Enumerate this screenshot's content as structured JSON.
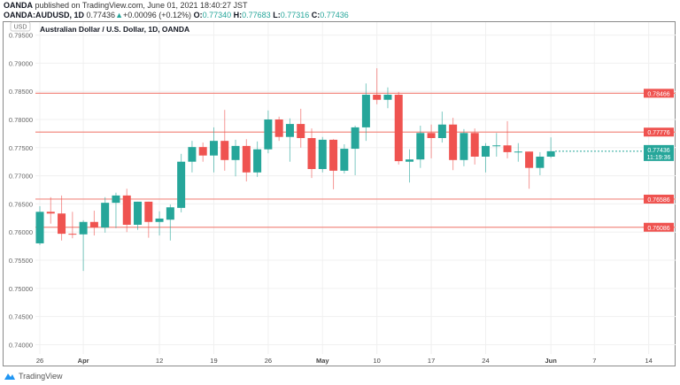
{
  "header": {
    "publisher": "OANDA",
    "published_text": "published on TradingView.com, June 01, 2021 18:40:27 JST",
    "symbol": "OANDA:AUDUSD, 1D",
    "last": "0.77436",
    "change": "+0.00096 (+0.12%)",
    "o_label": "O:",
    "o": "0.77340",
    "h_label": "H:",
    "h": "0.77683",
    "l_label": "L:",
    "l": "0.77316",
    "c_label": "C:",
    "c": "0.77436"
  },
  "footer": {
    "brand": "TradingView"
  },
  "colors": {
    "up": "#26a69a",
    "down": "#ef5350",
    "level": "#f28b82",
    "grid": "#f0f0f0"
  },
  "chart_data": {
    "type": "candlestick",
    "title": "Australian Dollar / U.S. Dollar, 1D, OANDA",
    "currency_label": "USD",
    "ylim": [
      0.7375,
      0.7958
    ],
    "y_ticks": [
      "0.79500",
      "0.79000",
      "0.78500",
      "0.78000",
      "0.77500",
      "0.77000",
      "0.76500",
      "0.76000",
      "0.75500",
      "0.75000",
      "0.74500",
      "0.74000"
    ],
    "x_ticks": [
      {
        "label": "26",
        "index": 0,
        "bold": false
      },
      {
        "label": "Apr",
        "index": 4,
        "bold": true
      },
      {
        "label": "12",
        "index": 11,
        "bold": false
      },
      {
        "label": "19",
        "index": 16,
        "bold": false
      },
      {
        "label": "26",
        "index": 21,
        "bold": false
      },
      {
        "label": "May",
        "index": 26,
        "bold": true
      },
      {
        "label": "10",
        "index": 31,
        "bold": false
      },
      {
        "label": "17",
        "index": 36,
        "bold": false
      },
      {
        "label": "24",
        "index": 41,
        "bold": false
      },
      {
        "label": "Jun",
        "index": 47,
        "bold": true
      },
      {
        "label": "7",
        "index": 51,
        "bold": false
      },
      {
        "label": "14",
        "index": 56,
        "bold": false
      }
    ],
    "horizontal_levels": [
      "0.78466",
      "0.77776",
      "0.76586",
      "0.76086"
    ],
    "current_price": {
      "value": "0.77436",
      "countdown": "11:19:36"
    },
    "ohlc": [
      [
        0.758,
        0.7646,
        0.7577,
        0.7636
      ],
      [
        0.7636,
        0.7662,
        0.7615,
        0.7633
      ],
      [
        0.7633,
        0.7665,
        0.7585,
        0.7597
      ],
      [
        0.7597,
        0.7636,
        0.7589,
        0.7596
      ],
      [
        0.7596,
        0.7621,
        0.7531,
        0.7618
      ],
      [
        0.7618,
        0.7638,
        0.7594,
        0.7608
      ],
      [
        0.7608,
        0.7662,
        0.7599,
        0.7652
      ],
      [
        0.7652,
        0.767,
        0.7607,
        0.7665
      ],
      [
        0.7665,
        0.7677,
        0.76,
        0.7613
      ],
      [
        0.7613,
        0.7654,
        0.7604,
        0.7654
      ],
      [
        0.7654,
        0.7654,
        0.759,
        0.7618
      ],
      [
        0.7618,
        0.7637,
        0.7594,
        0.7624
      ],
      [
        0.7622,
        0.7649,
        0.7585,
        0.7644
      ],
      [
        0.7643,
        0.7739,
        0.7635,
        0.7725
      ],
      [
        0.7725,
        0.7762,
        0.7706,
        0.7751
      ],
      [
        0.7751,
        0.7759,
        0.7725,
        0.7736
      ],
      [
        0.7736,
        0.7786,
        0.7706,
        0.7762
      ],
      [
        0.7762,
        0.7817,
        0.7709,
        0.7728
      ],
      [
        0.7728,
        0.7764,
        0.7699,
        0.7753
      ],
      [
        0.7753,
        0.7765,
        0.769,
        0.7706
      ],
      [
        0.7706,
        0.7761,
        0.7698,
        0.7747
      ],
      [
        0.7747,
        0.7816,
        0.774,
        0.78
      ],
      [
        0.78,
        0.7805,
        0.7762,
        0.7769
      ],
      [
        0.7769,
        0.7802,
        0.7725,
        0.7792
      ],
      [
        0.7792,
        0.7819,
        0.775,
        0.7767
      ],
      [
        0.7767,
        0.7784,
        0.7696,
        0.7712
      ],
      [
        0.7712,
        0.7769,
        0.7706,
        0.7764
      ],
      [
        0.7764,
        0.7765,
        0.7676,
        0.7709
      ],
      [
        0.7709,
        0.7756,
        0.7704,
        0.7748
      ],
      [
        0.7748,
        0.7789,
        0.7701,
        0.7786
      ],
      [
        0.7786,
        0.7864,
        0.7762,
        0.7844
      ],
      [
        0.7844,
        0.7891,
        0.7827,
        0.7835
      ],
      [
        0.7835,
        0.7857,
        0.782,
        0.7844
      ],
      [
        0.7844,
        0.7849,
        0.772,
        0.7726
      ],
      [
        0.7725,
        0.7747,
        0.7688,
        0.7729
      ],
      [
        0.7729,
        0.7789,
        0.7714,
        0.7776
      ],
      [
        0.7776,
        0.7791,
        0.7731,
        0.7767
      ],
      [
        0.7767,
        0.7814,
        0.7759,
        0.7791
      ],
      [
        0.7791,
        0.7803,
        0.771,
        0.7728
      ],
      [
        0.7728,
        0.7783,
        0.7717,
        0.7776
      ],
      [
        0.7776,
        0.7784,
        0.772,
        0.7734
      ],
      [
        0.7734,
        0.7758,
        0.7706,
        0.7753
      ],
      [
        0.7753,
        0.7776,
        0.7734,
        0.7754
      ],
      [
        0.7754,
        0.7797,
        0.7731,
        0.7742
      ],
      [
        0.7742,
        0.7758,
        0.7725,
        0.7743
      ],
      [
        0.7743,
        0.7743,
        0.7677,
        0.7714
      ],
      [
        0.7714,
        0.7742,
        0.7701,
        0.7734
      ],
      [
        0.7734,
        0.77683,
        0.77316,
        0.77436
      ]
    ]
  }
}
